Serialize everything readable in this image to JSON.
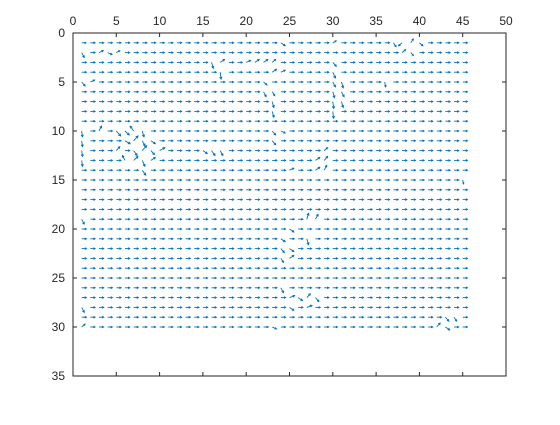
{
  "chart_data": {
    "type": "quiver",
    "title": "",
    "xlabel": "",
    "ylabel": "",
    "xlim": [
      0,
      50
    ],
    "ylim": [
      0,
      35
    ],
    "x_axis_location": "top",
    "y_axis_direction": "reverse",
    "grid": false,
    "legend": "none",
    "xticks": [
      0,
      5,
      10,
      15,
      20,
      25,
      30,
      35,
      40,
      45,
      50
    ],
    "yticks": [
      0,
      5,
      10,
      15,
      20,
      25,
      30,
      35
    ],
    "xtick_labels": [
      "0",
      "5",
      "10",
      "15",
      "20",
      "25",
      "30",
      "35",
      "40",
      "45",
      "50"
    ],
    "ytick_labels": [
      "0",
      "5",
      "10",
      "15",
      "20",
      "25",
      "30",
      "35"
    ],
    "grid_x": [
      1,
      45
    ],
    "grid_y": [
      1,
      30
    ],
    "series": [
      {
        "color": "#0072BD",
        "default_vector": [
          0.55,
          0
        ],
        "vectors": [
          {
            "x": 1,
            "y": 1,
            "u": 0.5,
            "v": 0
          },
          {
            "x": 24,
            "y": 1,
            "u": 0.5,
            "v": 0.3
          },
          {
            "x": 30,
            "y": 1,
            "u": 0.4,
            "v": -0.2
          },
          {
            "x": 37,
            "y": 1,
            "u": 0.3,
            "v": 0.4
          },
          {
            "x": 38,
            "y": 1,
            "u": -0.4,
            "v": 0.3
          },
          {
            "x": 39,
            "y": 1,
            "u": 0.3,
            "v": -0.4
          },
          {
            "x": 40,
            "y": 1,
            "u": 0.4,
            "v": 0.3
          },
          {
            "x": 1,
            "y": 2,
            "u": 0.3,
            "v": 0.5
          },
          {
            "x": 3,
            "y": 2,
            "u": 0.5,
            "v": -0.2
          },
          {
            "x": 4,
            "y": 2,
            "u": 0.5,
            "v": 0.2
          },
          {
            "x": 5,
            "y": 2,
            "u": 0.4,
            "v": -0.2
          },
          {
            "x": 38,
            "y": 2,
            "u": 0.4,
            "v": -0.3
          },
          {
            "x": 39,
            "y": 2,
            "u": 0.3,
            "v": 0.3
          },
          {
            "x": 16,
            "y": 3,
            "u": 0.2,
            "v": 0.6
          },
          {
            "x": 17,
            "y": 3,
            "u": 0.5,
            "v": -0.3
          },
          {
            "x": 20,
            "y": 3,
            "u": 0.5,
            "v": -0.2
          },
          {
            "x": 21,
            "y": 3,
            "u": 0.5,
            "v": -0.3
          },
          {
            "x": 22,
            "y": 3,
            "u": 0.5,
            "v": -0.3
          },
          {
            "x": 23,
            "y": 3,
            "u": 0.4,
            "v": -0.3
          },
          {
            "x": 30,
            "y": 3,
            "u": 0.4,
            "v": 0.4
          },
          {
            "x": 17,
            "y": 4,
            "u": 0.1,
            "v": 0.7
          },
          {
            "x": 23,
            "y": 4,
            "u": 0.5,
            "v": -0.3
          },
          {
            "x": 24,
            "y": 4,
            "u": 0.5,
            "v": -0.2
          },
          {
            "x": 30,
            "y": 4,
            "u": 0.3,
            "v": 0.6
          },
          {
            "x": 1,
            "y": 5,
            "u": 0.4,
            "v": 0.4
          },
          {
            "x": 2,
            "y": 5,
            "u": 0.5,
            "v": -0.2
          },
          {
            "x": 22,
            "y": 5,
            "u": 0.4,
            "v": 0.3
          },
          {
            "x": 30,
            "y": 5,
            "u": 0.3,
            "v": 0.5
          },
          {
            "x": 31,
            "y": 5,
            "u": 0.2,
            "v": 0.6
          },
          {
            "x": 36,
            "y": 5,
            "u": 0.1,
            "v": 0.5
          },
          {
            "x": 22,
            "y": 6,
            "u": 0.3,
            "v": 0.5
          },
          {
            "x": 23,
            "y": 6,
            "u": 0.3,
            "v": 0.4
          },
          {
            "x": 30,
            "y": 6,
            "u": 0.2,
            "v": 0.6
          },
          {
            "x": 31,
            "y": 6,
            "u": 0.3,
            "v": 0.5
          },
          {
            "x": 23,
            "y": 7,
            "u": 0.2,
            "v": 0.6
          },
          {
            "x": 30,
            "y": 7,
            "u": 0.1,
            "v": 0.7
          },
          {
            "x": 31,
            "y": 7,
            "u": 0.2,
            "v": 0.6
          },
          {
            "x": 23,
            "y": 8,
            "u": 0.2,
            "v": 0.6
          },
          {
            "x": 30,
            "y": 8,
            "u": 0.1,
            "v": 0.7
          },
          {
            "x": 1,
            "y": 10,
            "u": 0.1,
            "v": 0.6
          },
          {
            "x": 3,
            "y": 10,
            "u": 0.3,
            "v": -0.5
          },
          {
            "x": 5,
            "y": 10,
            "u": 0.5,
            "v": 0.5
          },
          {
            "x": 6,
            "y": 10,
            "u": 0.5,
            "v": 0.4
          },
          {
            "x": 7,
            "y": 10,
            "u": -0.4,
            "v": -0.5
          },
          {
            "x": 8,
            "y": 10,
            "u": 0.2,
            "v": 0.6
          },
          {
            "x": 23,
            "y": 10,
            "u": 0.4,
            "v": 0.4
          },
          {
            "x": 24,
            "y": 10,
            "u": 0.5,
            "v": 0.2
          },
          {
            "x": 1,
            "y": 11,
            "u": 0.1,
            "v": 0.6
          },
          {
            "x": 6,
            "y": 11,
            "u": 0.6,
            "v": 0.3
          },
          {
            "x": 7,
            "y": 11,
            "u": 0.5,
            "v": -0.5
          },
          {
            "x": 8,
            "y": 11,
            "u": 0.3,
            "v": 0.5
          },
          {
            "x": 9,
            "y": 11,
            "u": 0.5,
            "v": 0.3
          },
          {
            "x": 23,
            "y": 11,
            "u": 0.4,
            "v": 0.4
          },
          {
            "x": 1,
            "y": 12,
            "u": 0.1,
            "v": 0.6
          },
          {
            "x": 5,
            "y": 12,
            "u": 0.4,
            "v": -0.4
          },
          {
            "x": 7,
            "y": 12,
            "u": 0.4,
            "v": 0.5
          },
          {
            "x": 8,
            "y": 12,
            "u": 0.5,
            "v": -0.5
          },
          {
            "x": 9,
            "y": 12,
            "u": 0.4,
            "v": 0.4
          },
          {
            "x": 10,
            "y": 12,
            "u": 0.6,
            "v": -0.3
          },
          {
            "x": 15,
            "y": 12,
            "u": 0.5,
            "v": 0.3
          },
          {
            "x": 16,
            "y": 12,
            "u": 0.4,
            "v": 0.5
          },
          {
            "x": 17,
            "y": 12,
            "u": 0.3,
            "v": 0.5
          },
          {
            "x": 29,
            "y": 12,
            "u": 0.4,
            "v": -0.3
          },
          {
            "x": 1,
            "y": 13,
            "u": 0.1,
            "v": 0.6
          },
          {
            "x": 6,
            "y": 13,
            "u": -0.3,
            "v": -0.5
          },
          {
            "x": 7,
            "y": 13,
            "u": 0.5,
            "v": -0.4
          },
          {
            "x": 8,
            "y": 13,
            "u": 0.3,
            "v": 0.6
          },
          {
            "x": 9,
            "y": 13,
            "u": 0.5,
            "v": -0.3
          },
          {
            "x": 28,
            "y": 13,
            "u": 0.5,
            "v": -0.3
          },
          {
            "x": 29,
            "y": 13,
            "u": 0.4,
            "v": -0.4
          },
          {
            "x": 8,
            "y": 14,
            "u": 0.4,
            "v": 0.5
          },
          {
            "x": 25,
            "y": 14,
            "u": 0.5,
            "v": -0.2
          },
          {
            "x": 28,
            "y": 14,
            "u": 0.5,
            "v": -0.3
          },
          {
            "x": 29,
            "y": 14,
            "u": 0.3,
            "v": -0.5
          },
          {
            "x": 45,
            "y": 15,
            "u": 0.1,
            "v": 0.4
          },
          {
            "x": 1,
            "y": 19,
            "u": 0.3,
            "v": 0.5
          },
          {
            "x": 27,
            "y": 19,
            "u": 0.2,
            "v": -0.6
          },
          {
            "x": 28,
            "y": 19,
            "u": 0.3,
            "v": -0.5
          },
          {
            "x": 25,
            "y": 20,
            "u": 0.5,
            "v": 0.3
          },
          {
            "x": 27,
            "y": 21,
            "u": 0.2,
            "v": 0.6
          },
          {
            "x": 24,
            "y": 21,
            "u": 0.5,
            "v": 0.3
          },
          {
            "x": 24,
            "y": 22,
            "u": 0.4,
            "v": 0.4
          },
          {
            "x": 25,
            "y": 22,
            "u": 0.5,
            "v": 0.3
          },
          {
            "x": 24,
            "y": 23,
            "u": 0.3,
            "v": 0.4
          },
          {
            "x": 25,
            "y": 23,
            "u": 0.5,
            "v": -0.3
          },
          {
            "x": 24,
            "y": 26,
            "u": 0.3,
            "v": 0.5
          },
          {
            "x": 25,
            "y": 27,
            "u": 0.6,
            "v": -0.2
          },
          {
            "x": 26,
            "y": 27,
            "u": 0.5,
            "v": 0.3
          },
          {
            "x": 27,
            "y": 27,
            "u": 0.4,
            "v": -0.4
          },
          {
            "x": 28,
            "y": 27,
            "u": 0.4,
            "v": 0.4
          },
          {
            "x": 1,
            "y": 28,
            "u": 0.3,
            "v": 0.5
          },
          {
            "x": 25,
            "y": 28,
            "u": 0.5,
            "v": 0.3
          },
          {
            "x": 27,
            "y": 28,
            "u": 0.6,
            "v": -0.2
          },
          {
            "x": 43,
            "y": 29,
            "u": 0.4,
            "v": 0.4
          },
          {
            "x": 44,
            "y": 29,
            "u": 0.3,
            "v": 0.4
          },
          {
            "x": 1,
            "y": 30,
            "u": 0.4,
            "v": -0.3
          },
          {
            "x": 23,
            "y": 30,
            "u": 0.5,
            "v": 0.2
          },
          {
            "x": 42,
            "y": 30,
            "u": 0.4,
            "v": -0.4
          },
          {
            "x": 43,
            "y": 30,
            "u": 0.5,
            "v": 0.3
          }
        ]
      }
    ]
  }
}
